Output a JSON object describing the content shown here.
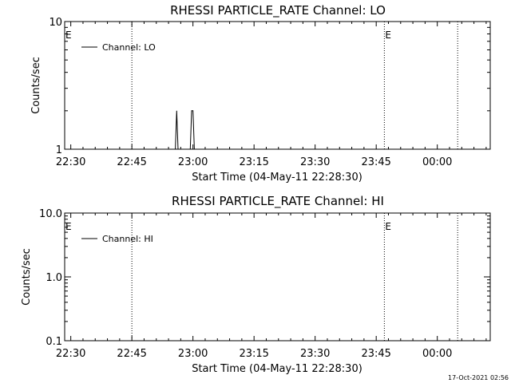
{
  "footer": {
    "timestamp": "17-Oct-2021 02:56"
  },
  "chart_data": [
    {
      "type": "line",
      "title": "RHESSI PARTICLE_RATE Channel: LO",
      "xlabel": "Start Time (04-May-11 22:28:30)",
      "ylabel": "Counts/sec",
      "y_scale": "log",
      "ylim": [
        1,
        10
      ],
      "yticks": [
        {
          "value": 1,
          "label": "1"
        },
        {
          "value": 10,
          "label": "10"
        }
      ],
      "xlim": [
        "22:28:30",
        "00:13:00"
      ],
      "xticks": [
        "22:30",
        "22:45",
        "23:00",
        "23:15",
        "23:30",
        "23:45",
        "00:00"
      ],
      "grid": false,
      "legend": {
        "position": "top-left",
        "entries": [
          "Channel: LO"
        ]
      },
      "vertical_lines": [
        "22:45",
        "23:47",
        "00:05"
      ],
      "markers": [
        {
          "x": "22:28:30",
          "label": "E"
        },
        {
          "x": "23:47",
          "label": "E"
        }
      ],
      "series": [
        {
          "name": "Channel: LO",
          "x": [
            "22:55:40",
            "22:56:00",
            "22:56:20",
            "22:59:20",
            "22:59:40",
            "23:00:00",
            "23:00:20"
          ],
          "y": [
            1,
            2,
            1,
            1,
            2,
            2,
            1
          ]
        }
      ]
    },
    {
      "type": "line",
      "title": "RHESSI PARTICLE_RATE Channel: HI",
      "xlabel": "Start Time (04-May-11 22:28:30)",
      "ylabel": "Counts/sec",
      "y_scale": "log",
      "ylim": [
        0.1,
        10
      ],
      "yticks": [
        {
          "value": 0.1,
          "label": "0.1"
        },
        {
          "value": 1,
          "label": "1.0"
        },
        {
          "value": 10,
          "label": "10.0"
        }
      ],
      "xlim": [
        "22:28:30",
        "00:13:00"
      ],
      "xticks": [
        "22:30",
        "22:45",
        "23:00",
        "23:15",
        "23:30",
        "23:45",
        "00:00"
      ],
      "grid": false,
      "legend": {
        "position": "top-left",
        "entries": [
          "Channel: HI"
        ]
      },
      "vertical_lines": [
        "22:45",
        "23:47",
        "00:05"
      ],
      "markers": [
        {
          "x": "22:28:30",
          "label": "E"
        },
        {
          "x": "23:47",
          "label": "E"
        }
      ],
      "series": [
        {
          "name": "Channel: HI",
          "x": [],
          "y": []
        }
      ]
    }
  ]
}
